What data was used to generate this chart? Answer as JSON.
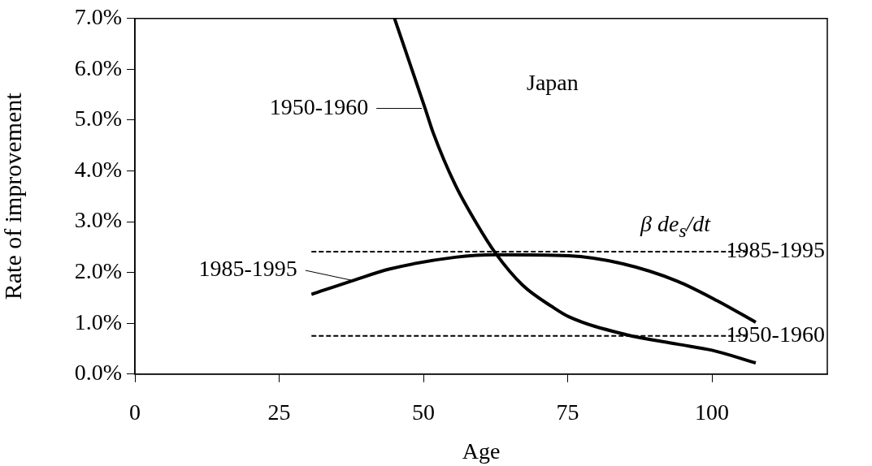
{
  "chart_data": {
    "type": "line",
    "xlabel": "Age",
    "ylabel": "Rate of improvement",
    "annotations": [
      "Japan",
      "β de$_{s}$/dt"
    ],
    "xlim": [
      0,
      120
    ],
    "xticks": [
      0,
      25,
      50,
      75,
      100
    ],
    "ylim": [
      0,
      7
    ],
    "yticks": [
      {
        "value": 0,
        "label": "0.0%"
      },
      {
        "value": 1,
        "label": "1.0%"
      },
      {
        "value": 2,
        "label": "2.0%"
      },
      {
        "value": 3,
        "label": "3.0%"
      },
      {
        "value": 4,
        "label": "4.0%"
      },
      {
        "value": 5,
        "label": "5.0%"
      },
      {
        "value": 6,
        "label": "6.0%"
      },
      {
        "value": 7,
        "label": "7.0%"
      }
    ],
    "grid": false,
    "legend": "left",
    "marker": "none",
    "series": [
      {
        "name": "1950-1960",
        "color": "#000000",
        "line_style": "solid",
        "x": [
          45,
          50.3,
          51.7,
          55.5,
          59.3,
          62.5,
          67.2,
          72.4,
          75.2,
          85,
          94,
          100,
          107.6
        ],
        "values": [
          7.0,
          5.23,
          4.75,
          3.73,
          2.95,
          2.38,
          1.75,
          1.32,
          1.13,
          0.78,
          0.59,
          0.47,
          0.22
        ]
      },
      {
        "name": "1985-1995",
        "color": "#000000",
        "line_style": "solid",
        "x": [
          30.6,
          38,
          44.2,
          55.5,
          62.5,
          75.2,
          84.6,
          94,
          101,
          107.6
        ],
        "values": [
          1.57,
          1.85,
          2.07,
          2.3,
          2.35,
          2.33,
          2.17,
          1.83,
          1.44,
          1.02
        ]
      },
      {
        "name": "1985-1995",
        "color": "#000000",
        "line_style": "dashed",
        "x": [
          30.6,
          106
        ],
        "values": [
          2.41,
          2.41
        ]
      },
      {
        "name": "1950-1960",
        "color": "#000000",
        "line_style": "dashed",
        "x": [
          30.6,
          106
        ],
        "values": [
          0.75,
          0.75
        ]
      }
    ]
  }
}
